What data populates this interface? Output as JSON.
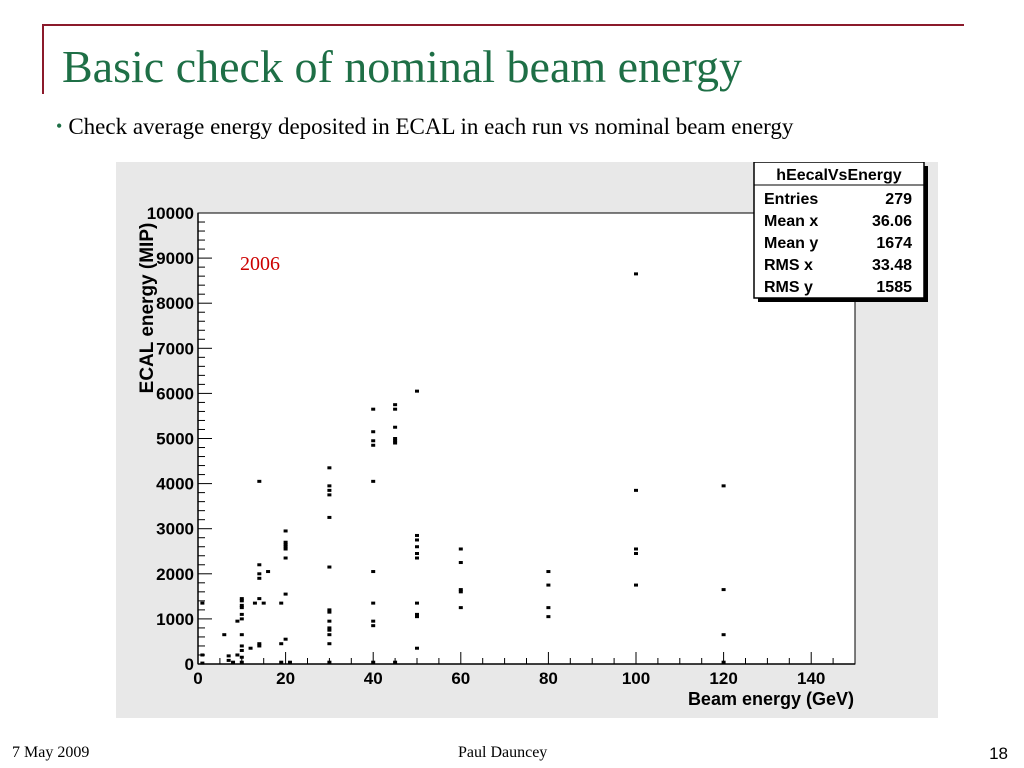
{
  "slide": {
    "title": "Basic check of nominal beam energy",
    "bullet": "Check average energy deposited in ECAL in each run vs nominal beam energy",
    "bullet_symbol": "•",
    "footer": {
      "date": "7 May 2009",
      "author": "Paul Dauncey",
      "page": "18"
    },
    "colors": {
      "title": "#1e6f46",
      "accent": "#8b1a2b",
      "annotation": "#cc0000"
    }
  },
  "chart_data": {
    "type": "scatter",
    "title": "",
    "xlabel": "Beam energy (GeV)",
    "ylabel": "ECAL energy (MIP)",
    "xlim": [
      0,
      150
    ],
    "ylim": [
      0,
      10000
    ],
    "x_ticks": [
      0,
      20,
      40,
      60,
      80,
      100,
      120,
      140
    ],
    "y_ticks": [
      0,
      1000,
      2000,
      3000,
      4000,
      5000,
      6000,
      7000,
      8000,
      9000,
      10000
    ],
    "annotation": "2006",
    "grid": false,
    "stats_box": {
      "name": "hEecalVsEnergy",
      "rows": [
        {
          "label": "Entries",
          "value": "279"
        },
        {
          "label": "Mean x",
          "value": "36.06"
        },
        {
          "label": "Mean y",
          "value": "1674"
        },
        {
          "label": "RMS x",
          "value": "33.48"
        },
        {
          "label": "RMS y",
          "value": "1585"
        }
      ]
    },
    "points": [
      [
        1,
        1350
      ],
      [
        1,
        200
      ],
      [
        1,
        20
      ],
      [
        6,
        650
      ],
      [
        7,
        180
      ],
      [
        7,
        80
      ],
      [
        8,
        40
      ],
      [
        9,
        200
      ],
      [
        9,
        950
      ],
      [
        10,
        1250
      ],
      [
        10,
        1300
      ],
      [
        10,
        1400
      ],
      [
        10,
        1100
      ],
      [
        10,
        1000
      ],
      [
        10,
        650
      ],
      [
        10,
        400
      ],
      [
        10,
        300
      ],
      [
        10,
        150
      ],
      [
        10,
        40
      ],
      [
        10,
        1450
      ],
      [
        12,
        350
      ],
      [
        13,
        1350
      ],
      [
        14,
        4050
      ],
      [
        14,
        2200
      ],
      [
        14,
        2000
      ],
      [
        14,
        1900
      ],
      [
        14,
        1450
      ],
      [
        14,
        450
      ],
      [
        14,
        400
      ],
      [
        15,
        1350
      ],
      [
        16,
        2050
      ],
      [
        19,
        1350
      ],
      [
        19,
        450
      ],
      [
        19,
        40
      ],
      [
        20,
        2350
      ],
      [
        20,
        2550
      ],
      [
        20,
        2600
      ],
      [
        20,
        2650
      ],
      [
        20,
        2700
      ],
      [
        20,
        2950
      ],
      [
        20,
        1550
      ],
      [
        20,
        550
      ],
      [
        21,
        40
      ],
      [
        30,
        4350
      ],
      [
        30,
        3950
      ],
      [
        30,
        3850
      ],
      [
        30,
        3750
      ],
      [
        30,
        3250
      ],
      [
        30,
        2150
      ],
      [
        30,
        1200
      ],
      [
        30,
        1150
      ],
      [
        30,
        950
      ],
      [
        30,
        800
      ],
      [
        30,
        750
      ],
      [
        30,
        650
      ],
      [
        30,
        450
      ],
      [
        30,
        40
      ],
      [
        40,
        5650
      ],
      [
        40,
        5150
      ],
      [
        40,
        4950
      ],
      [
        40,
        4850
      ],
      [
        40,
        4050
      ],
      [
        40,
        2050
      ],
      [
        40,
        1350
      ],
      [
        40,
        950
      ],
      [
        40,
        850
      ],
      [
        40,
        40
      ],
      [
        45,
        5750
      ],
      [
        45,
        5650
      ],
      [
        45,
        5250
      ],
      [
        45,
        5000
      ],
      [
        45,
        4950
      ],
      [
        45,
        4900
      ],
      [
        45,
        40
      ],
      [
        50,
        6050
      ],
      [
        50,
        2850
      ],
      [
        50,
        2750
      ],
      [
        50,
        2600
      ],
      [
        50,
        2450
      ],
      [
        50,
        2350
      ],
      [
        50,
        1350
      ],
      [
        50,
        1100
      ],
      [
        50,
        1050
      ],
      [
        50,
        350
      ],
      [
        60,
        2550
      ],
      [
        60,
        2250
      ],
      [
        60,
        1650
      ],
      [
        60,
        1600
      ],
      [
        60,
        1250
      ],
      [
        80,
        2050
      ],
      [
        80,
        1750
      ],
      [
        80,
        1250
      ],
      [
        80,
        1050
      ],
      [
        100,
        8650
      ],
      [
        100,
        3850
      ],
      [
        100,
        2550
      ],
      [
        100,
        2450
      ],
      [
        100,
        1750
      ],
      [
        120,
        3950
      ],
      [
        120,
        1650
      ],
      [
        120,
        650
      ],
      [
        120,
        40
      ]
    ]
  }
}
